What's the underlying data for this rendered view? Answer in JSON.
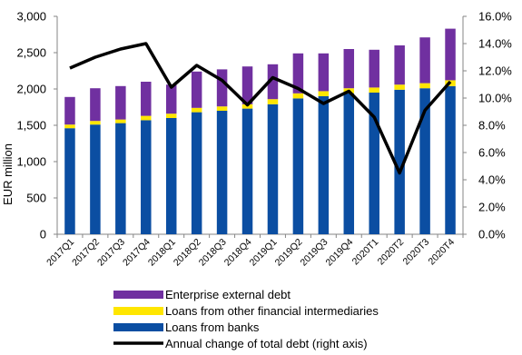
{
  "chart_data": {
    "type": "bar",
    "stacked": true,
    "categories": [
      "2017Q1",
      "2017Q2",
      "2017Q3",
      "2017Q4",
      "2018Q1",
      "2018Q2",
      "2018Q3",
      "2018Q4",
      "2019Q1",
      "2019Q2",
      "2019Q3",
      "2019Q4",
      "2020T1",
      "2020T2",
      "2020T3",
      "2020T4"
    ],
    "ylabel": "EUR million",
    "ylim": [
      0,
      3000
    ],
    "yticks": [
      "0",
      "500",
      "1,000",
      "1,500",
      "2,000",
      "2,500",
      "3,000"
    ],
    "y2lim": [
      0,
      16
    ],
    "y2ticks": [
      "0.0%",
      "2.0%",
      "4.0%",
      "6.0%",
      "8.0%",
      "10.0%",
      "12.0%",
      "14.0%",
      "16.0%"
    ],
    "grid": false,
    "legend_position": "bottom",
    "series": [
      {
        "name": "Loans from banks",
        "type": "bar",
        "color": "#0b4ea2",
        "values": [
          1460,
          1510,
          1530,
          1570,
          1600,
          1680,
          1700,
          1730,
          1790,
          1870,
          1900,
          1940,
          1950,
          1990,
          2010,
          2040
        ]
      },
      {
        "name": "Loans from other financial intermediaries",
        "type": "bar",
        "color": "#ffe600",
        "values": [
          50,
          50,
          50,
          60,
          60,
          60,
          60,
          60,
          70,
          70,
          70,
          70,
          70,
          70,
          70,
          80
        ]
      },
      {
        "name": "Enterprise external debt",
        "type": "bar",
        "color": "#7030a0",
        "values": [
          380,
          450,
          460,
          470,
          400,
          500,
          510,
          520,
          480,
          550,
          520,
          540,
          520,
          540,
          630,
          710
        ]
      },
      {
        "name": "Annual change of total debt (right axis)",
        "type": "line",
        "axis": "right",
        "color": "#000000",
        "values": [
          12.2,
          13.0,
          13.6,
          14.0,
          10.8,
          12.4,
          11.3,
          9.5,
          11.5,
          10.7,
          9.6,
          10.5,
          8.6,
          4.5,
          9.1,
          11.2
        ]
      }
    ],
    "legend_order": [
      "Enterprise external debt",
      "Loans from other financial intermediaries",
      "Loans from banks",
      "Annual change of total debt (right axis)"
    ]
  }
}
